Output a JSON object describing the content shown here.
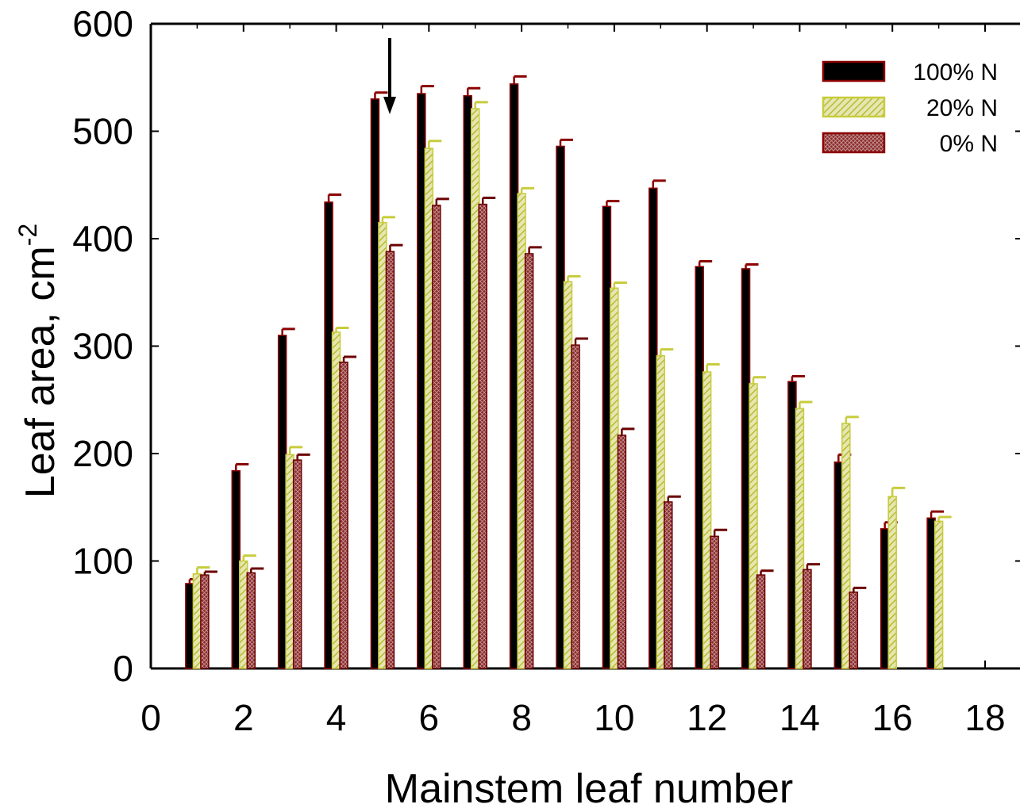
{
  "chart_data": {
    "type": "bar",
    "xlabel": "Mainstem leaf number",
    "ylabel": "Leaf  area, cm",
    "ylabel_superscript": "-2",
    "xlim": [
      0,
      18
    ],
    "ylim": [
      0,
      600
    ],
    "xticks": [
      "0",
      "2",
      "4",
      "6",
      "8",
      "10",
      "12",
      "14",
      "16",
      "18"
    ],
    "yticks": [
      "0",
      "100",
      "200",
      "300",
      "400",
      "500",
      "600"
    ],
    "grid": false,
    "legend_position": "top-right",
    "annotation": "downward arrow above leaf 5",
    "categories": [
      1,
      2,
      3,
      4,
      5,
      6,
      7,
      8,
      9,
      10,
      11,
      12,
      13,
      14,
      15,
      16,
      17
    ],
    "series": [
      {
        "name": "100% N",
        "color": "#000000",
        "edge": "#8b0000",
        "pattern": "solid",
        "values": [
          79,
          184,
          310,
          434,
          530,
          535,
          533,
          544,
          486,
          430,
          447,
          374,
          372,
          267,
          192,
          130,
          140
        ],
        "errors": [
          4,
          6,
          6,
          7,
          6,
          7,
          7,
          7,
          6,
          5,
          7,
          5,
          4,
          5,
          7,
          6,
          6
        ]
      },
      {
        "name": "20% N",
        "color": "#c8cc3c",
        "edge": "#c8cc3c",
        "pattern": "hatch",
        "values": [
          88,
          100,
          199,
          313,
          415,
          484,
          521,
          442,
          360,
          354,
          291,
          276,
          265,
          242,
          228,
          160,
          137
        ],
        "errors": [
          6,
          5,
          7,
          4,
          5,
          7,
          6,
          5,
          5,
          5,
          6,
          7,
          6,
          6,
          6,
          8,
          4
        ]
      },
      {
        "name": "0% N",
        "color": "#8b2a2a",
        "edge": "#6b0000",
        "pattern": "crosshatch",
        "values": [
          87,
          89,
          194,
          285,
          388,
          431,
          432,
          386,
          301,
          217,
          155,
          123,
          87,
          92,
          71,
          null,
          null
        ],
        "errors": [
          3,
          4,
          5,
          5,
          6,
          6,
          6,
          6,
          6,
          6,
          5,
          6,
          4,
          5,
          4,
          null,
          null
        ]
      }
    ]
  }
}
